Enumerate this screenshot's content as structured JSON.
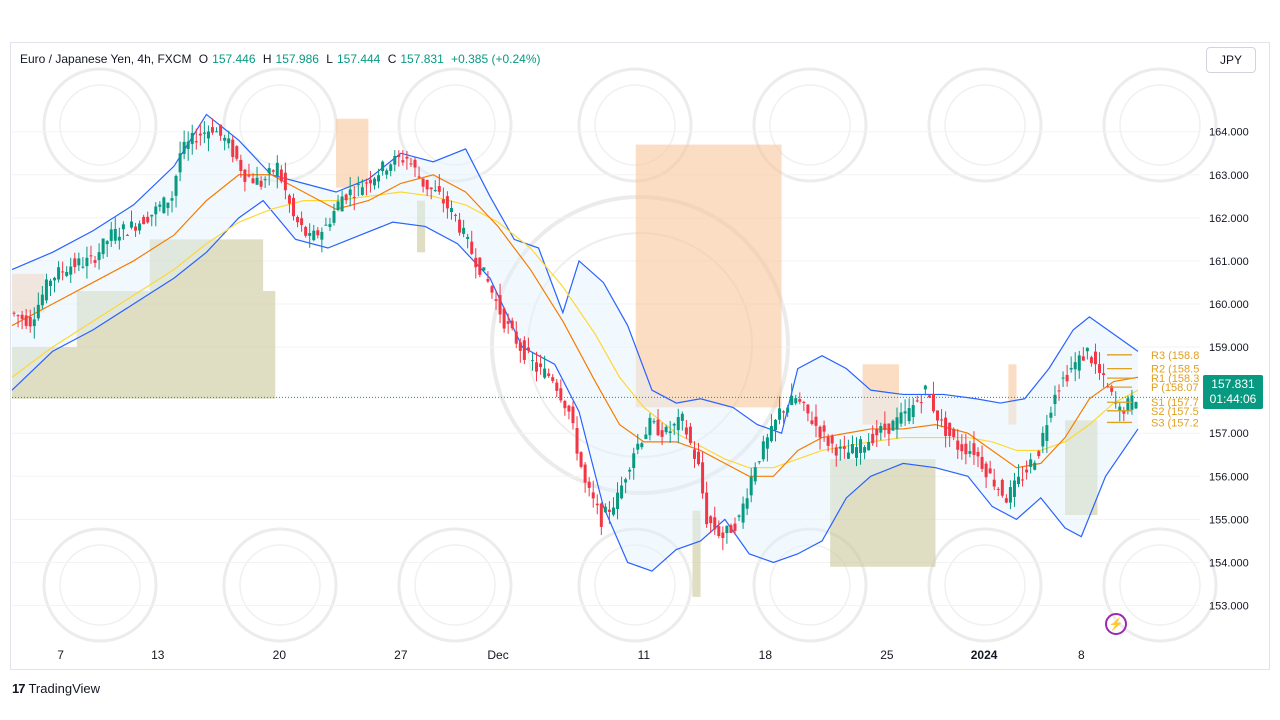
{
  "header": {
    "symbol": "Euro / Japanese Yen, 4h, FXCM",
    "open_label": "O",
    "open": "157.446",
    "high_label": "H",
    "high": "157.986",
    "low_label": "L",
    "low": "157.444",
    "close_label": "C",
    "close": "157.831",
    "change": "+0.385 (+0.24%)"
  },
  "currency": "JPY",
  "price_tag": {
    "price": "157.831",
    "countdown": "01:44:06"
  },
  "branding": "TradingView",
  "colors": {
    "up": "#089981",
    "down": "#f23645",
    "bollinger": "#2962ff",
    "ema_fast": "#f57c00",
    "ema_slow": "#fdd835",
    "orange_zone": "#f9c69d",
    "green_zone": "#c9c89a",
    "pivot": "#e0a020"
  },
  "chart_data": {
    "type": "candlestick",
    "ylim": [
      152.2,
      165.2
    ],
    "y_ticks": [
      "164.000",
      "163.000",
      "162.000",
      "161.000",
      "160.000",
      "159.000",
      "157.000",
      "156.000",
      "155.000",
      "154.000",
      "153.000"
    ],
    "x_ticks": [
      {
        "label": "7",
        "x": 12
      },
      {
        "label": "13",
        "x": 36
      },
      {
        "label": "20",
        "x": 66
      },
      {
        "label": "27",
        "x": 96
      },
      {
        "label": "Dec",
        "x": 120
      },
      {
        "label": "11",
        "x": 156
      },
      {
        "label": "18",
        "x": 186
      },
      {
        "label": "25",
        "x": 216
      },
      {
        "label": "2024",
        "x": 240
      },
      {
        "label": "8",
        "x": 264
      }
    ],
    "x_range": [
      0,
      278
    ],
    "last_price": 157.831,
    "pivots": [
      {
        "label": "R3 (158.8",
        "value": 158.82
      },
      {
        "label": "R2 (158.5",
        "value": 158.5
      },
      {
        "label": "R1 (158.3",
        "value": 158.28
      },
      {
        "label": "P (158.07",
        "value": 158.07
      },
      {
        "label": "S1 (157.7",
        "value": 157.72
      },
      {
        "label": "S2 (157.5",
        "value": 157.52
      },
      {
        "label": "S3 (157.2",
        "value": 157.25
      }
    ],
    "price_path": [
      [
        0,
        159.8
      ],
      [
        5,
        159.6
      ],
      [
        10,
        160.6
      ],
      [
        15,
        160.9
      ],
      [
        20,
        161.0
      ],
      [
        25,
        161.6
      ],
      [
        30,
        161.8
      ],
      [
        35,
        162.1
      ],
      [
        40,
        162.5
      ],
      [
        42,
        163.5
      ],
      [
        46,
        163.9
      ],
      [
        50,
        164.1
      ],
      [
        54,
        163.7
      ],
      [
        58,
        163.0
      ],
      [
        62,
        162.8
      ],
      [
        66,
        163.2
      ],
      [
        70,
        162.0
      ],
      [
        74,
        161.5
      ],
      [
        78,
        161.8
      ],
      [
        82,
        162.5
      ],
      [
        86,
        162.7
      ],
      [
        90,
        163.0
      ],
      [
        94,
        163.3
      ],
      [
        98,
        163.4
      ],
      [
        102,
        162.8
      ],
      [
        106,
        162.5
      ],
      [
        110,
        162.0
      ],
      [
        114,
        161.2
      ],
      [
        118,
        160.5
      ],
      [
        122,
        159.6
      ],
      [
        126,
        159.0
      ],
      [
        130,
        158.5
      ],
      [
        134,
        158.3
      ],
      [
        138,
        157.5
      ],
      [
        142,
        155.8
      ],
      [
        146,
        155.0
      ],
      [
        150,
        155.5
      ],
      [
        154,
        156.6
      ],
      [
        158,
        157.2
      ],
      [
        162,
        157.0
      ],
      [
        166,
        157.3
      ],
      [
        170,
        156.2
      ],
      [
        172,
        155.0
      ],
      [
        176,
        154.6
      ],
      [
        180,
        155.0
      ],
      [
        184,
        156.3
      ],
      [
        188,
        157.0
      ],
      [
        190,
        157.5
      ],
      [
        194,
        157.8
      ],
      [
        198,
        157.3
      ],
      [
        202,
        156.8
      ],
      [
        206,
        156.5
      ],
      [
        210,
        156.7
      ],
      [
        214,
        157.0
      ],
      [
        218,
        157.2
      ],
      [
        222,
        157.5
      ],
      [
        226,
        158.0
      ],
      [
        230,
        157.2
      ],
      [
        234,
        156.7
      ],
      [
        238,
        156.6
      ],
      [
        242,
        156.0
      ],
      [
        246,
        155.5
      ],
      [
        250,
        156.0
      ],
      [
        254,
        156.6
      ],
      [
        258,
        158.0
      ],
      [
        262,
        158.5
      ],
      [
        266,
        158.9
      ],
      [
        270,
        158.2
      ],
      [
        274,
        157.5
      ],
      [
        278,
        157.831
      ]
    ],
    "bollinger_upper": [
      [
        0,
        160.8
      ],
      [
        10,
        161.2
      ],
      [
        20,
        161.7
      ],
      [
        30,
        162.3
      ],
      [
        40,
        163.2
      ],
      [
        48,
        164.4
      ],
      [
        56,
        163.8
      ],
      [
        64,
        163.0
      ],
      [
        72,
        162.8
      ],
      [
        80,
        162.6
      ],
      [
        88,
        162.9
      ],
      [
        96,
        163.5
      ],
      [
        104,
        163.3
      ],
      [
        112,
        163.6
      ],
      [
        118,
        162.5
      ],
      [
        124,
        161.5
      ],
      [
        130,
        161.3
      ],
      [
        136,
        159.8
      ],
      [
        140,
        161.0
      ],
      [
        146,
        160.5
      ],
      [
        152,
        159.5
      ],
      [
        158,
        158.0
      ],
      [
        164,
        157.7
      ],
      [
        170,
        157.8
      ],
      [
        178,
        157.6
      ],
      [
        184,
        157.2
      ],
      [
        190,
        157.0
      ],
      [
        194,
        158.5
      ],
      [
        200,
        158.8
      ],
      [
        206,
        158.5
      ],
      [
        212,
        158.0
      ],
      [
        220,
        157.9
      ],
      [
        230,
        157.9
      ],
      [
        238,
        157.8
      ],
      [
        244,
        157.7
      ],
      [
        250,
        157.8
      ],
      [
        256,
        158.5
      ],
      [
        262,
        159.4
      ],
      [
        266,
        159.7
      ],
      [
        272,
        159.3
      ],
      [
        278,
        158.9
      ]
    ],
    "bollinger_lower": [
      [
        0,
        158.0
      ],
      [
        10,
        158.9
      ],
      [
        20,
        159.4
      ],
      [
        30,
        160.0
      ],
      [
        40,
        160.6
      ],
      [
        48,
        161.2
      ],
      [
        56,
        162.0
      ],
      [
        62,
        162.4
      ],
      [
        70,
        161.5
      ],
      [
        78,
        161.3
      ],
      [
        86,
        161.6
      ],
      [
        94,
        161.9
      ],
      [
        102,
        161.8
      ],
      [
        110,
        161.4
      ],
      [
        118,
        160.6
      ],
      [
        126,
        159.0
      ],
      [
        134,
        158.6
      ],
      [
        140,
        157.5
      ],
      [
        146,
        155.3
      ],
      [
        152,
        154.0
      ],
      [
        158,
        153.8
      ],
      [
        164,
        154.3
      ],
      [
        170,
        154.5
      ],
      [
        176,
        155.0
      ],
      [
        182,
        154.2
      ],
      [
        188,
        154.0
      ],
      [
        194,
        154.2
      ],
      [
        200,
        154.5
      ],
      [
        206,
        155.5
      ],
      [
        212,
        156.0
      ],
      [
        220,
        156.3
      ],
      [
        228,
        156.2
      ],
      [
        236,
        156.0
      ],
      [
        242,
        155.3
      ],
      [
        248,
        155.0
      ],
      [
        254,
        155.5
      ],
      [
        260,
        154.8
      ],
      [
        264,
        154.6
      ],
      [
        270,
        156.0
      ],
      [
        278,
        157.1
      ]
    ],
    "ema_fast": [
      [
        0,
        159.5
      ],
      [
        10,
        160.0
      ],
      [
        20,
        160.5
      ],
      [
        30,
        161.0
      ],
      [
        40,
        161.6
      ],
      [
        48,
        162.4
      ],
      [
        56,
        163.0
      ],
      [
        64,
        163.0
      ],
      [
        72,
        162.6
      ],
      [
        80,
        162.2
      ],
      [
        88,
        162.4
      ],
      [
        96,
        162.8
      ],
      [
        104,
        163.0
      ],
      [
        112,
        162.6
      ],
      [
        120,
        161.8
      ],
      [
        128,
        160.8
      ],
      [
        136,
        159.6
      ],
      [
        144,
        158.2
      ],
      [
        150,
        157.2
      ],
      [
        156,
        156.8
      ],
      [
        164,
        156.8
      ],
      [
        170,
        156.6
      ],
      [
        176,
        156.3
      ],
      [
        182,
        156.0
      ],
      [
        188,
        156.0
      ],
      [
        194,
        156.6
      ],
      [
        200,
        156.9
      ],
      [
        206,
        157.0
      ],
      [
        212,
        157.1
      ],
      [
        220,
        157.1
      ],
      [
        228,
        157.2
      ],
      [
        236,
        157.0
      ],
      [
        242,
        156.6
      ],
      [
        248,
        156.2
      ],
      [
        254,
        156.3
      ],
      [
        260,
        156.9
      ],
      [
        266,
        157.8
      ],
      [
        272,
        158.2
      ],
      [
        278,
        158.3
      ]
    ],
    "ema_slow": [
      [
        0,
        158.3
      ],
      [
        10,
        159.0
      ],
      [
        20,
        159.6
      ],
      [
        30,
        160.2
      ],
      [
        40,
        160.8
      ],
      [
        48,
        161.4
      ],
      [
        56,
        161.9
      ],
      [
        64,
        162.2
      ],
      [
        72,
        162.4
      ],
      [
        80,
        162.4
      ],
      [
        88,
        162.5
      ],
      [
        96,
        162.6
      ],
      [
        104,
        162.5
      ],
      [
        112,
        162.3
      ],
      [
        120,
        161.9
      ],
      [
        128,
        161.3
      ],
      [
        136,
        160.4
      ],
      [
        144,
        159.3
      ],
      [
        150,
        158.3
      ],
      [
        156,
        157.6
      ],
      [
        164,
        157.0
      ],
      [
        170,
        156.7
      ],
      [
        176,
        156.4
      ],
      [
        182,
        156.2
      ],
      [
        188,
        156.2
      ],
      [
        194,
        156.4
      ],
      [
        200,
        156.6
      ],
      [
        206,
        156.7
      ],
      [
        212,
        156.8
      ],
      [
        220,
        156.9
      ],
      [
        228,
        156.9
      ],
      [
        236,
        156.9
      ],
      [
        242,
        156.8
      ],
      [
        248,
        156.6
      ],
      [
        254,
        156.6
      ],
      [
        260,
        156.8
      ],
      [
        266,
        157.2
      ],
      [
        272,
        157.7
      ],
      [
        278,
        158.0
      ]
    ],
    "zones": [
      {
        "type": "green",
        "x0": 0,
        "x1": 65,
        "y0": 157.8,
        "y1": 159.0
      },
      {
        "type": "green",
        "x0": 16,
        "x1": 65,
        "y0": 159.0,
        "y1": 160.3
      },
      {
        "type": "green",
        "x0": 34,
        "x1": 62,
        "y0": 160.3,
        "y1": 161.5
      },
      {
        "type": "orange",
        "x0": 0,
        "x1": 8,
        "y0": 159.8,
        "y1": 160.7
      },
      {
        "type": "orange",
        "x0": 80,
        "x1": 88,
        "y0": 162.7,
        "y1": 164.3
      },
      {
        "type": "green",
        "x0": 100,
        "x1": 102,
        "y0": 161.2,
        "y1": 162.4
      },
      {
        "type": "orange",
        "x0": 154,
        "x1": 190,
        "y0": 157.6,
        "y1": 163.7
      },
      {
        "type": "green",
        "x0": 168,
        "x1": 170,
        "y0": 153.2,
        "y1": 155.2
      },
      {
        "type": "green",
        "x0": 202,
        "x1": 228,
        "y0": 153.9,
        "y1": 156.4
      },
      {
        "type": "orange",
        "x0": 210,
        "x1": 219,
        "y0": 157.2,
        "y1": 158.6
      },
      {
        "type": "orange",
        "x0": 246,
        "x1": 248,
        "y0": 157.2,
        "y1": 158.6
      },
      {
        "type": "green",
        "x0": 260,
        "x1": 268,
        "y0": 155.1,
        "y1": 157.3
      }
    ]
  }
}
